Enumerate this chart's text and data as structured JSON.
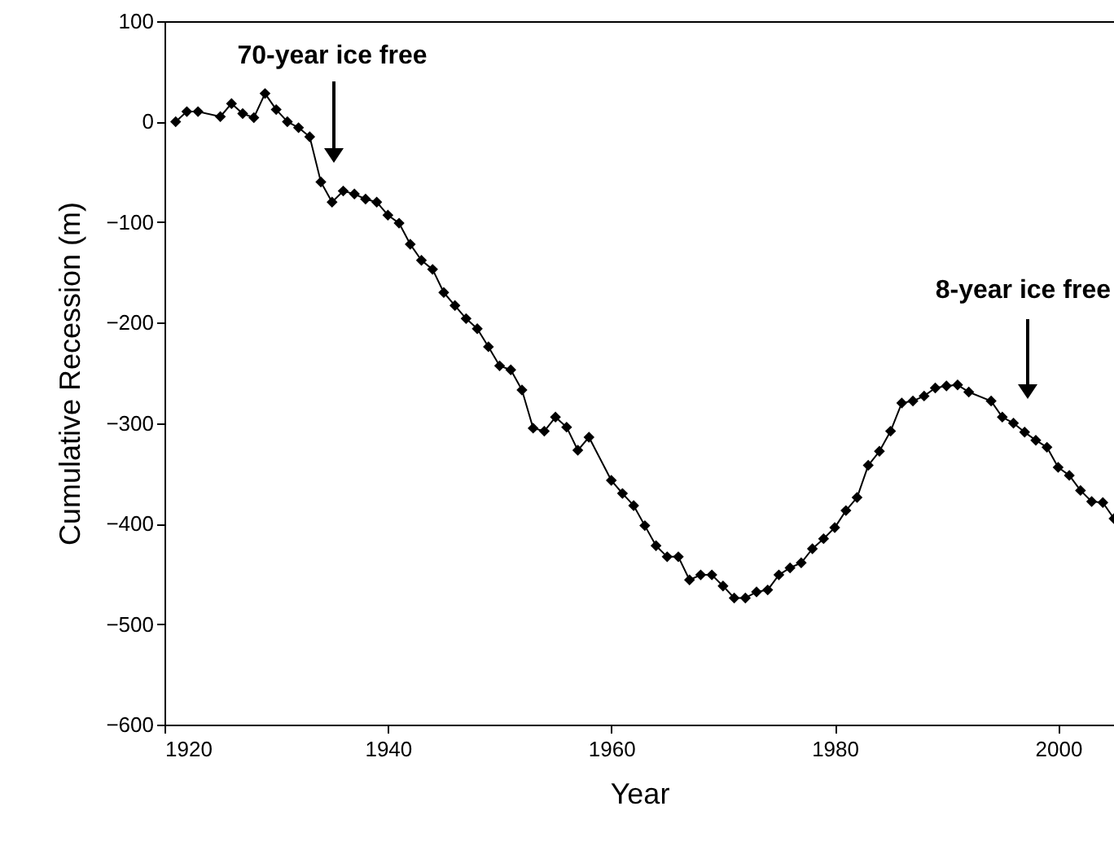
{
  "chart_data": {
    "type": "line",
    "xlabel": "Year",
    "ylabel": "Cumulative Recession (m)",
    "x": [
      1921,
      1922,
      1923,
      1925,
      1926,
      1927,
      1928,
      1929,
      1930,
      1931,
      1932,
      1933,
      1934,
      1935,
      1936,
      1937,
      1938,
      1939,
      1940,
      1941,
      1942,
      1943,
      1944,
      1945,
      1946,
      1947,
      1948,
      1949,
      1950,
      1951,
      1952,
      1953,
      1954,
      1955,
      1956,
      1957,
      1958,
      1960,
      1961,
      1962,
      1963,
      1964,
      1965,
      1966,
      1967,
      1968,
      1969,
      1970,
      1971,
      1972,
      1973,
      1974,
      1975,
      1976,
      1977,
      1978,
      1979,
      1980,
      1981,
      1982,
      1983,
      1984,
      1985,
      1986,
      1987,
      1988,
      1989,
      1990,
      1991,
      1992,
      1994,
      1995,
      1996,
      1997,
      1998,
      1999,
      2000,
      2001,
      2002,
      2003,
      2004,
      2005
    ],
    "series": [
      {
        "color": "#000000",
        "values": [
          0,
          10,
          10,
          5,
          18,
          8,
          4,
          28,
          12,
          0,
          -6,
          -15,
          -60,
          -80,
          -69,
          -72,
          -77,
          -80,
          -93,
          -101,
          -122,
          -138,
          -147,
          -170,
          -183,
          -196,
          -206,
          -224,
          -243,
          -247,
          -267,
          -305,
          -308,
          -294,
          -304,
          -327,
          -314,
          -357,
          -370,
          -382,
          -402,
          -422,
          -433,
          -433,
          -456,
          -451,
          -451,
          -462,
          -474,
          -474,
          -468,
          -466,
          -451,
          -444,
          -439,
          -425,
          -415,
          -404,
          -387,
          -374,
          -342,
          -328,
          -308,
          -280,
          -278,
          -273,
          -265,
          -263,
          -262,
          -269,
          -278,
          -294,
          -300,
          -309,
          -317,
          -324,
          -344,
          -352,
          -367,
          -378,
          -379,
          -395
        ]
      }
    ],
    "xlim": [
      1920,
      2005
    ],
    "xticks": [
      {
        "value": 1920,
        "label": "1920"
      },
      {
        "value": 1940,
        "label": "1940"
      },
      {
        "value": 1960,
        "label": "1960"
      },
      {
        "value": 1980,
        "label": "1980"
      },
      {
        "value": 2000,
        "label": "2000"
      }
    ],
    "ylim": [
      -600,
      100
    ],
    "yticks": [
      -600,
      -500,
      -400,
      -300,
      -200,
      -100,
      0,
      100
    ],
    "marker": "diamond",
    "line_style": "solid",
    "annotations": [
      "70-year ice free",
      "8-year ice free"
    ]
  }
}
